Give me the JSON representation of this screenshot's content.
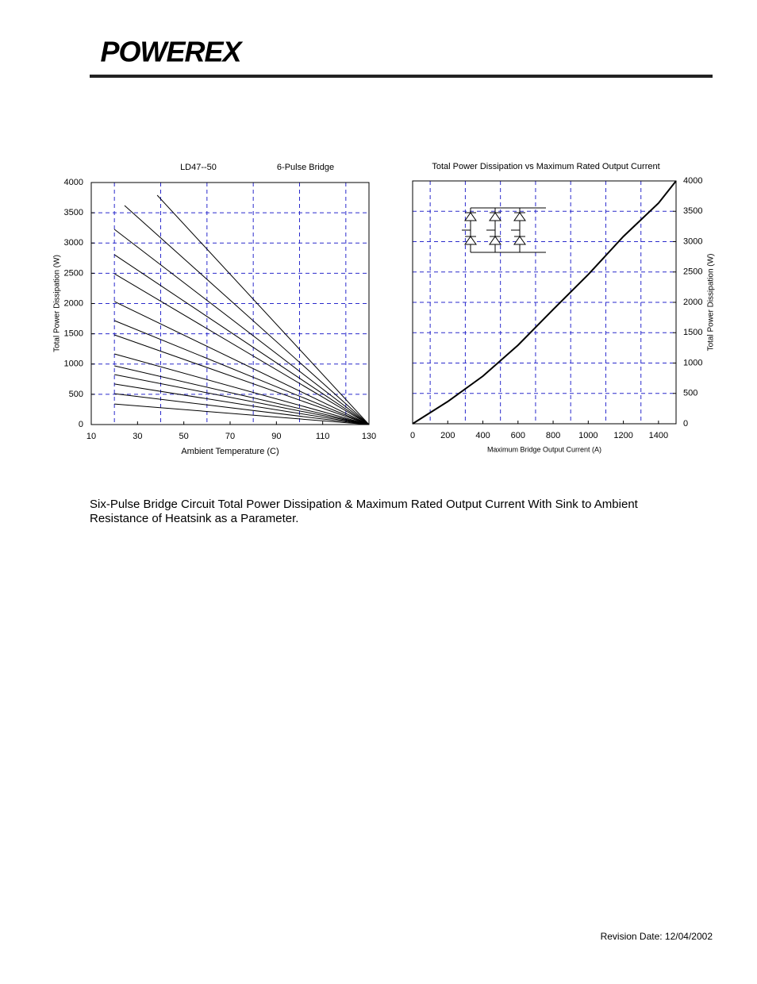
{
  "header": {
    "logo": "POWEREX"
  },
  "chart_data": [
    {
      "type": "line",
      "title": "LD47--50",
      "subtitle": "6-Pulse Bridge",
      "x_label": "Ambient Temperature (C)",
      "y_label": "Total Power Dissipation (W)",
      "xlim": [
        10,
        130
      ],
      "xticks": [
        10,
        30,
        50,
        70,
        90,
        110,
        130
      ],
      "xgrid": [
        20,
        40,
        60,
        80,
        100,
        120
      ],
      "ylim": [
        0,
        4000
      ],
      "yticks": [
        0,
        500,
        1000,
        1500,
        2000,
        2500,
        3000,
        3500,
        4000
      ],
      "ygrid": [
        500,
        1000,
        1500,
        2000,
        2500,
        3000,
        3500
      ],
      "yaxis_side": "left",
      "grid": true,
      "series": [
        {
          "color": "#000000",
          "x": [
            20,
            130
          ],
          "values": [
            340,
            0
          ]
        },
        {
          "color": "#000000",
          "x": [
            20,
            130
          ],
          "values": [
            510,
            0
          ]
        },
        {
          "color": "#000000",
          "x": [
            20,
            130
          ],
          "values": [
            670,
            0
          ]
        },
        {
          "color": "#000000",
          "x": [
            20,
            130
          ],
          "values": [
            826,
            0
          ]
        },
        {
          "color": "#000000",
          "x": [
            20,
            130
          ],
          "values": [
            970,
            0
          ]
        },
        {
          "color": "#000000",
          "x": [
            20,
            130
          ],
          "values": [
            1167,
            0
          ]
        },
        {
          "color": "#000000",
          "x": [
            20,
            130
          ],
          "values": [
            1482,
            0
          ]
        },
        {
          "color": "#000000",
          "x": [
            20,
            130
          ],
          "values": [
            1718,
            0
          ]
        },
        {
          "color": "#000000",
          "x": [
            20,
            130
          ],
          "values": [
            2033,
            0
          ]
        },
        {
          "color": "#000000",
          "x": [
            20,
            130
          ],
          "values": [
            2492,
            0
          ]
        },
        {
          "color": "#000000",
          "x": [
            20,
            130
          ],
          "values": [
            2807,
            0
          ]
        },
        {
          "color": "#000000",
          "x": [
            20,
            130
          ],
          "values": [
            3226,
            0
          ]
        },
        {
          "color": "#000000",
          "x": [
            24.4,
            130
          ],
          "values": [
            3620,
            0
          ]
        },
        {
          "color": "#000000",
          "x": [
            38.5,
            130
          ],
          "values": [
            3790,
            0
          ]
        }
      ]
    },
    {
      "type": "line",
      "title": "Total Power Dissipation vs Maximum Rated Output Current",
      "x_label": "Maximum Bridge Output Current (A)",
      "y_label": "Total Power Dissipation (W)",
      "xlim": [
        0,
        1500
      ],
      "xticks": [
        0,
        200,
        400,
        600,
        800,
        1000,
        1200,
        1400
      ],
      "xgrid": [
        100,
        300,
        500,
        700,
        900,
        1100,
        1300
      ],
      "ylim": [
        0,
        4000
      ],
      "yticks": [
        0,
        500,
        1000,
        1500,
        2000,
        2500,
        3000,
        3500,
        4000
      ],
      "ygrid": [
        500,
        1000,
        1500,
        2000,
        2500,
        3000,
        3500
      ],
      "yaxis_side": "right",
      "grid": true,
      "series": [
        {
          "color": "#000000",
          "x": [
            0,
            200,
            400,
            600,
            800,
            1000,
            1200,
            1400,
            1500
          ],
          "values": [
            0,
            366,
            784,
            1294,
            1882,
            2458,
            3085,
            3634,
            4000
          ]
        }
      ]
    }
  ],
  "caption": "Six-Pulse Bridge Circuit Total Power Dissipation & Maximum Rated Output Current With Sink to Ambient Resistance of Heatsink as a Parameter.",
  "footer": "Revision Date:  12/04/2002"
}
